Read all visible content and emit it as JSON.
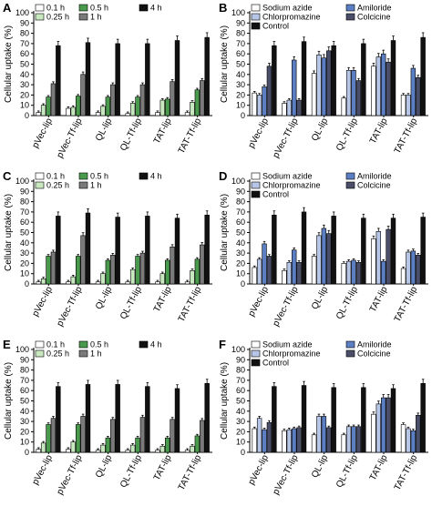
{
  "colors": {
    "time": [
      "#ffffff",
      "#c8e8c0",
      "#4a9a4e",
      "#7a7a7a",
      "#111111"
    ],
    "inhib": [
      "#ffffff",
      "#b7c5e6",
      "#5c7ec2",
      "#4a4e68",
      "#111111"
    ]
  },
  "chart_data": [
    {
      "panel": "A",
      "type": "bar",
      "ylabel": "Cellular uptake (%)",
      "ylim": [
        0,
        100
      ],
      "yticks": [
        0,
        10,
        20,
        30,
        40,
        50,
        60,
        70,
        80,
        90,
        100
      ],
      "legend_kind": "time",
      "legend": [
        "0.1 h",
        "0.25 h",
        "0.5 h",
        "1 h",
        "4 h"
      ],
      "categories": [
        "pVec-lip",
        "pVec-Tf-lip",
        "QL-lip",
        "QL-Tf-lip",
        "TAT-lip",
        "TAT-Tf-lip"
      ],
      "series": [
        {
          "name": "0.1 h",
          "values": [
            3,
            7,
            3,
            2,
            3,
            3
          ]
        },
        {
          "name": "0.25 h",
          "values": [
            10,
            8,
            9,
            12,
            15,
            13
          ]
        },
        {
          "name": "0.5 h",
          "values": [
            18,
            19,
            18,
            18,
            16,
            25
          ]
        },
        {
          "name": "1 h",
          "values": [
            31,
            40,
            30,
            30,
            33,
            34
          ]
        },
        {
          "name": "4 h",
          "values": [
            68,
            71,
            70,
            70,
            73,
            76
          ]
        }
      ]
    },
    {
      "panel": "B",
      "type": "bar",
      "ylabel": "Cellular uptake (%)",
      "ylim": [
        0,
        100
      ],
      "yticks": [
        0,
        10,
        20,
        30,
        40,
        50,
        60,
        70,
        80,
        90,
        100
      ],
      "legend_kind": "inhib",
      "legend": [
        "Sodium azide",
        "Chlorpromazine",
        "Amiloride",
        "Colcicine",
        "Control"
      ],
      "categories": [
        "pVec-lip",
        "pVec-Tf-lip",
        "QL-lip",
        "QL-Tf-lip",
        "TAT-lip",
        "TAT-Tf-lip"
      ],
      "series": [
        {
          "name": "Sodium azide",
          "values": [
            22,
            12,
            41,
            17,
            48,
            20
          ]
        },
        {
          "name": "Chlorpromazine",
          "values": [
            20,
            15,
            59,
            44,
            57,
            20
          ]
        },
        {
          "name": "Amiloride",
          "values": [
            28,
            54,
            56,
            44,
            60,
            46
          ]
        },
        {
          "name": "Colcicine",
          "values": [
            48,
            15,
            63,
            34,
            52,
            37
          ]
        },
        {
          "name": "Control",
          "values": [
            68,
            72,
            68,
            70,
            73,
            76
          ]
        }
      ]
    },
    {
      "panel": "C",
      "type": "bar",
      "ylabel": "Cellular uptake (%)",
      "ylim": [
        0,
        100
      ],
      "yticks": [
        0,
        10,
        20,
        30,
        40,
        50,
        60,
        70,
        80,
        90,
        100
      ],
      "legend_kind": "time",
      "legend": [
        "0.1 h",
        "0.25 h",
        "0.5 h",
        "1 h",
        "4 h"
      ],
      "categories": [
        "pVec-lip",
        "pVec-Tf-lip",
        "QL-lip",
        "QL-Tf-lip",
        "TAT-lip",
        "TAT-Tf-lip"
      ],
      "series": [
        {
          "name": "0.1 h",
          "values": [
            2,
            2,
            2,
            2,
            2,
            2
          ]
        },
        {
          "name": "0.25 h",
          "values": [
            5,
            7,
            10,
            14,
            10,
            13
          ]
        },
        {
          "name": "0.5 h",
          "values": [
            27,
            27,
            23,
            27,
            23,
            24
          ]
        },
        {
          "name": "1 h",
          "values": [
            31,
            47,
            28,
            30,
            36,
            38
          ]
        },
        {
          "name": "4 h",
          "values": [
            66,
            69,
            65,
            66,
            64,
            67
          ]
        }
      ]
    },
    {
      "panel": "D",
      "type": "bar",
      "ylabel": "Cellular uptake (%)",
      "ylim": [
        0,
        100
      ],
      "yticks": [
        0,
        10,
        20,
        30,
        40,
        50,
        60,
        70,
        80,
        90,
        100
      ],
      "legend_kind": "inhib",
      "legend": [
        "Sodium azide",
        "Chlorpromazine",
        "Amiloride",
        "Colcicine",
        "Control"
      ],
      "categories": [
        "pVec-lip",
        "pVec-Tf-lip",
        "QL-lip",
        "QL-Tf-lip",
        "TAT-lip",
        "TAT-Tf-lip"
      ],
      "series": [
        {
          "name": "Sodium azide",
          "values": [
            16,
            13,
            27,
            20,
            44,
            15
          ]
        },
        {
          "name": "Chlorpromazine",
          "values": [
            24,
            21,
            47,
            22,
            51,
            31
          ]
        },
        {
          "name": "Amiloride",
          "values": [
            39,
            33,
            54,
            23,
            22,
            32
          ]
        },
        {
          "name": "Colcicine",
          "values": [
            27,
            21,
            49,
            21,
            53,
            28
          ]
        },
        {
          "name": "Control",
          "values": [
            67,
            70,
            66,
            64,
            64,
            65
          ]
        }
      ]
    },
    {
      "panel": "E",
      "type": "bar",
      "ylabel": "Cellular uptake (%)",
      "ylim": [
        0,
        100
      ],
      "yticks": [
        0,
        10,
        20,
        30,
        40,
        50,
        60,
        70,
        80,
        90,
        100
      ],
      "legend_kind": "time",
      "legend": [
        "0.1 h",
        "0.25 h",
        "0.5 h",
        "1 h",
        "4 h"
      ],
      "categories": [
        "pVec-lip",
        "pVec-Tf-lip",
        "QL-lip",
        "QL-Tf-lip",
        "TAT-lip",
        "TAT-Tf-lip"
      ],
      "series": [
        {
          "name": "0.1 h",
          "values": [
            3,
            3,
            2,
            2,
            2,
            2
          ]
        },
        {
          "name": "0.25 h",
          "values": [
            9,
            10,
            7,
            7,
            6,
            6
          ]
        },
        {
          "name": "0.5 h",
          "values": [
            27,
            27,
            14,
            14,
            14,
            16
          ]
        },
        {
          "name": "1 h",
          "values": [
            33,
            35,
            32,
            34,
            32,
            31
          ]
        },
        {
          "name": "4 h",
          "values": [
            64,
            66,
            66,
            64,
            62,
            67
          ]
        }
      ]
    },
    {
      "panel": "F",
      "type": "bar",
      "ylabel": "Cellular uptake (%)",
      "ylim": [
        0,
        100
      ],
      "yticks": [
        0,
        10,
        20,
        30,
        40,
        50,
        60,
        70,
        80,
        90,
        100
      ],
      "legend_kind": "inhib",
      "legend": [
        "Sodium azide",
        "Chlorpromazine",
        "Amiloride",
        "Colcicine",
        "Control"
      ],
      "categories": [
        "pVec-lip",
        "pVec-Tf-lip",
        "QL-lip",
        "QL-Tf-lip",
        "TAT-lip",
        "TAT-Tf-lip"
      ],
      "series": [
        {
          "name": "Sodium azide",
          "values": [
            23,
            21,
            17,
            17,
            37,
            27
          ]
        },
        {
          "name": "Chlorpromazine",
          "values": [
            33,
            22,
            35,
            25,
            47,
            23
          ]
        },
        {
          "name": "Amiloride",
          "values": [
            22,
            23,
            35,
            25,
            53,
            21
          ]
        },
        {
          "name": "Colcicine",
          "values": [
            29,
            24,
            24,
            25,
            53,
            36
          ]
        },
        {
          "name": "Control",
          "values": [
            64,
            65,
            63,
            63,
            62,
            67
          ]
        }
      ]
    }
  ]
}
